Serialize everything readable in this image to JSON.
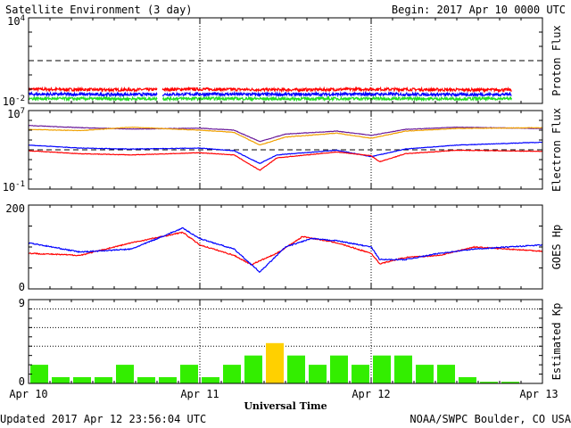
{
  "header": {
    "title": "Satellite Environment (3 day)",
    "begin": "Begin:  2017 Apr 10 0000 UTC"
  },
  "footer": {
    "updated": "Updated 2017 Apr 12 23:56:04 UTC",
    "credit": "NOAA/SWPC Boulder, CO USA"
  },
  "x_axis": {
    "title": "Universal Time",
    "ticks": [
      "Apr 10",
      "Apr 11",
      "Apr 12",
      "Apr 13"
    ],
    "range_days": [
      0,
      3
    ]
  },
  "colors": {
    "red": "#ff0000",
    "blue": "#0000ff",
    "green": "#22dd22",
    "purple": "#6a1b9a",
    "orange": "#f0a000",
    "kp_bar": "#33ee00",
    "kp_bar_high": "#ffd000"
  },
  "chart_data": [
    {
      "type": "line",
      "ylabel": "Proton Flux",
      "scale": "log",
      "ylim": [
        0.01,
        10000
      ],
      "yticks": [
        {
          "base": "10",
          "exp": "4"
        },
        {
          "base": "10",
          "exp": "-2"
        }
      ],
      "threshold": 10,
      "gaps": [
        [
          0.75,
          0.78
        ],
        [
          2.82,
          2.85
        ]
      ],
      "series": [
        {
          "color": "red",
          "x": [
            0,
            0.5,
            1,
            1.5,
            2,
            2.5,
            2.82
          ],
          "values": [
            0.1,
            0.09,
            0.1,
            0.09,
            0.1,
            0.09,
            0.09
          ]
        },
        {
          "color": "blue",
          "x": [
            0,
            0.5,
            1,
            1.5,
            2,
            2.5,
            2.82
          ],
          "values": [
            0.045,
            0.042,
            0.045,
            0.043,
            0.045,
            0.042,
            0.043
          ]
        },
        {
          "color": "green",
          "x": [
            0,
            0.5,
            1,
            1.5,
            2,
            2.5,
            2.82
          ],
          "values": [
            0.022,
            0.021,
            0.022,
            0.021,
            0.022,
            0.021,
            0.022
          ]
        }
      ]
    },
    {
      "type": "line",
      "ylabel": "Electron Flux",
      "scale": "log",
      "ylim": [
        0.1,
        10000000
      ],
      "yticks": [
        {
          "base": "10",
          "exp": "7"
        },
        {
          "base": "10",
          "exp": "-1"
        }
      ],
      "threshold": 1000,
      "series": [
        {
          "color": "purple",
          "x": [
            0,
            0.3,
            0.6,
            1.0,
            1.2,
            1.35,
            1.5,
            1.8,
            2.0,
            2.2,
            2.5,
            3.0
          ],
          "values": [
            300000,
            180000,
            130000,
            160000,
            100000,
            7000,
            40000,
            80000,
            30000,
            120000,
            200000,
            150000
          ]
        },
        {
          "color": "orange",
          "x": [
            0,
            0.3,
            0.6,
            1.0,
            1.2,
            1.35,
            1.5,
            1.8,
            2.0,
            2.2,
            2.5,
            3.0
          ],
          "values": [
            120000,
            90000,
            200000,
            100000,
            60000,
            3000,
            20000,
            50000,
            15000,
            80000,
            150000,
            180000
          ]
        },
        {
          "color": "blue",
          "x": [
            0,
            0.3,
            0.6,
            1.0,
            1.2,
            1.35,
            1.45,
            1.8,
            2.0,
            2.2,
            2.5,
            3.0
          ],
          "values": [
            3000,
            1500,
            1200,
            1500,
            800,
            40,
            300,
            900,
            200,
            1200,
            3000,
            6000
          ]
        },
        {
          "color": "red",
          "x": [
            0,
            0.3,
            0.6,
            1.0,
            1.2,
            1.35,
            1.45,
            1.8,
            2.0,
            2.05,
            2.2,
            2.5,
            3.0
          ],
          "values": [
            800,
            400,
            300,
            500,
            300,
            8,
            150,
            600,
            250,
            60,
            400,
            900,
            700
          ]
        }
      ]
    },
    {
      "type": "line",
      "ylabel": "GOES Hp",
      "ylim": [
        0,
        200
      ],
      "yticks": [
        "200",
        "0"
      ],
      "series": [
        {
          "color": "red",
          "x": [
            0,
            0.3,
            0.6,
            0.9,
            1.0,
            1.2,
            1.3,
            1.45,
            1.6,
            1.8,
            2.0,
            2.05,
            2.2,
            2.4,
            2.6,
            3.0
          ],
          "values": [
            85,
            80,
            110,
            135,
            105,
            80,
            58,
            85,
            125,
            110,
            85,
            60,
            75,
            80,
            100,
            90
          ]
        },
        {
          "color": "blue",
          "x": [
            0,
            0.3,
            0.6,
            0.9,
            1.0,
            1.2,
            1.35,
            1.5,
            1.65,
            1.8,
            2.0,
            2.05,
            2.2,
            2.4,
            2.6,
            3.0
          ],
          "values": [
            110,
            88,
            95,
            145,
            120,
            95,
            40,
            100,
            120,
            115,
            100,
            70,
            70,
            85,
            95,
            105
          ]
        }
      ]
    },
    {
      "type": "bar",
      "ylabel": "Estimated Kp",
      "ylim": [
        0,
        9
      ],
      "yticks": [
        "9",
        "0"
      ],
      "gridlines": [
        4,
        6,
        8
      ],
      "bar_width_hours": 3,
      "values": [
        2,
        0.67,
        0.67,
        0.67,
        2,
        0.67,
        0.67,
        2,
        0.67,
        2,
        3,
        4.33,
        3,
        2,
        3,
        2,
        3,
        3,
        2,
        2,
        0.67,
        0.17,
        0.17,
        0
      ]
    }
  ]
}
